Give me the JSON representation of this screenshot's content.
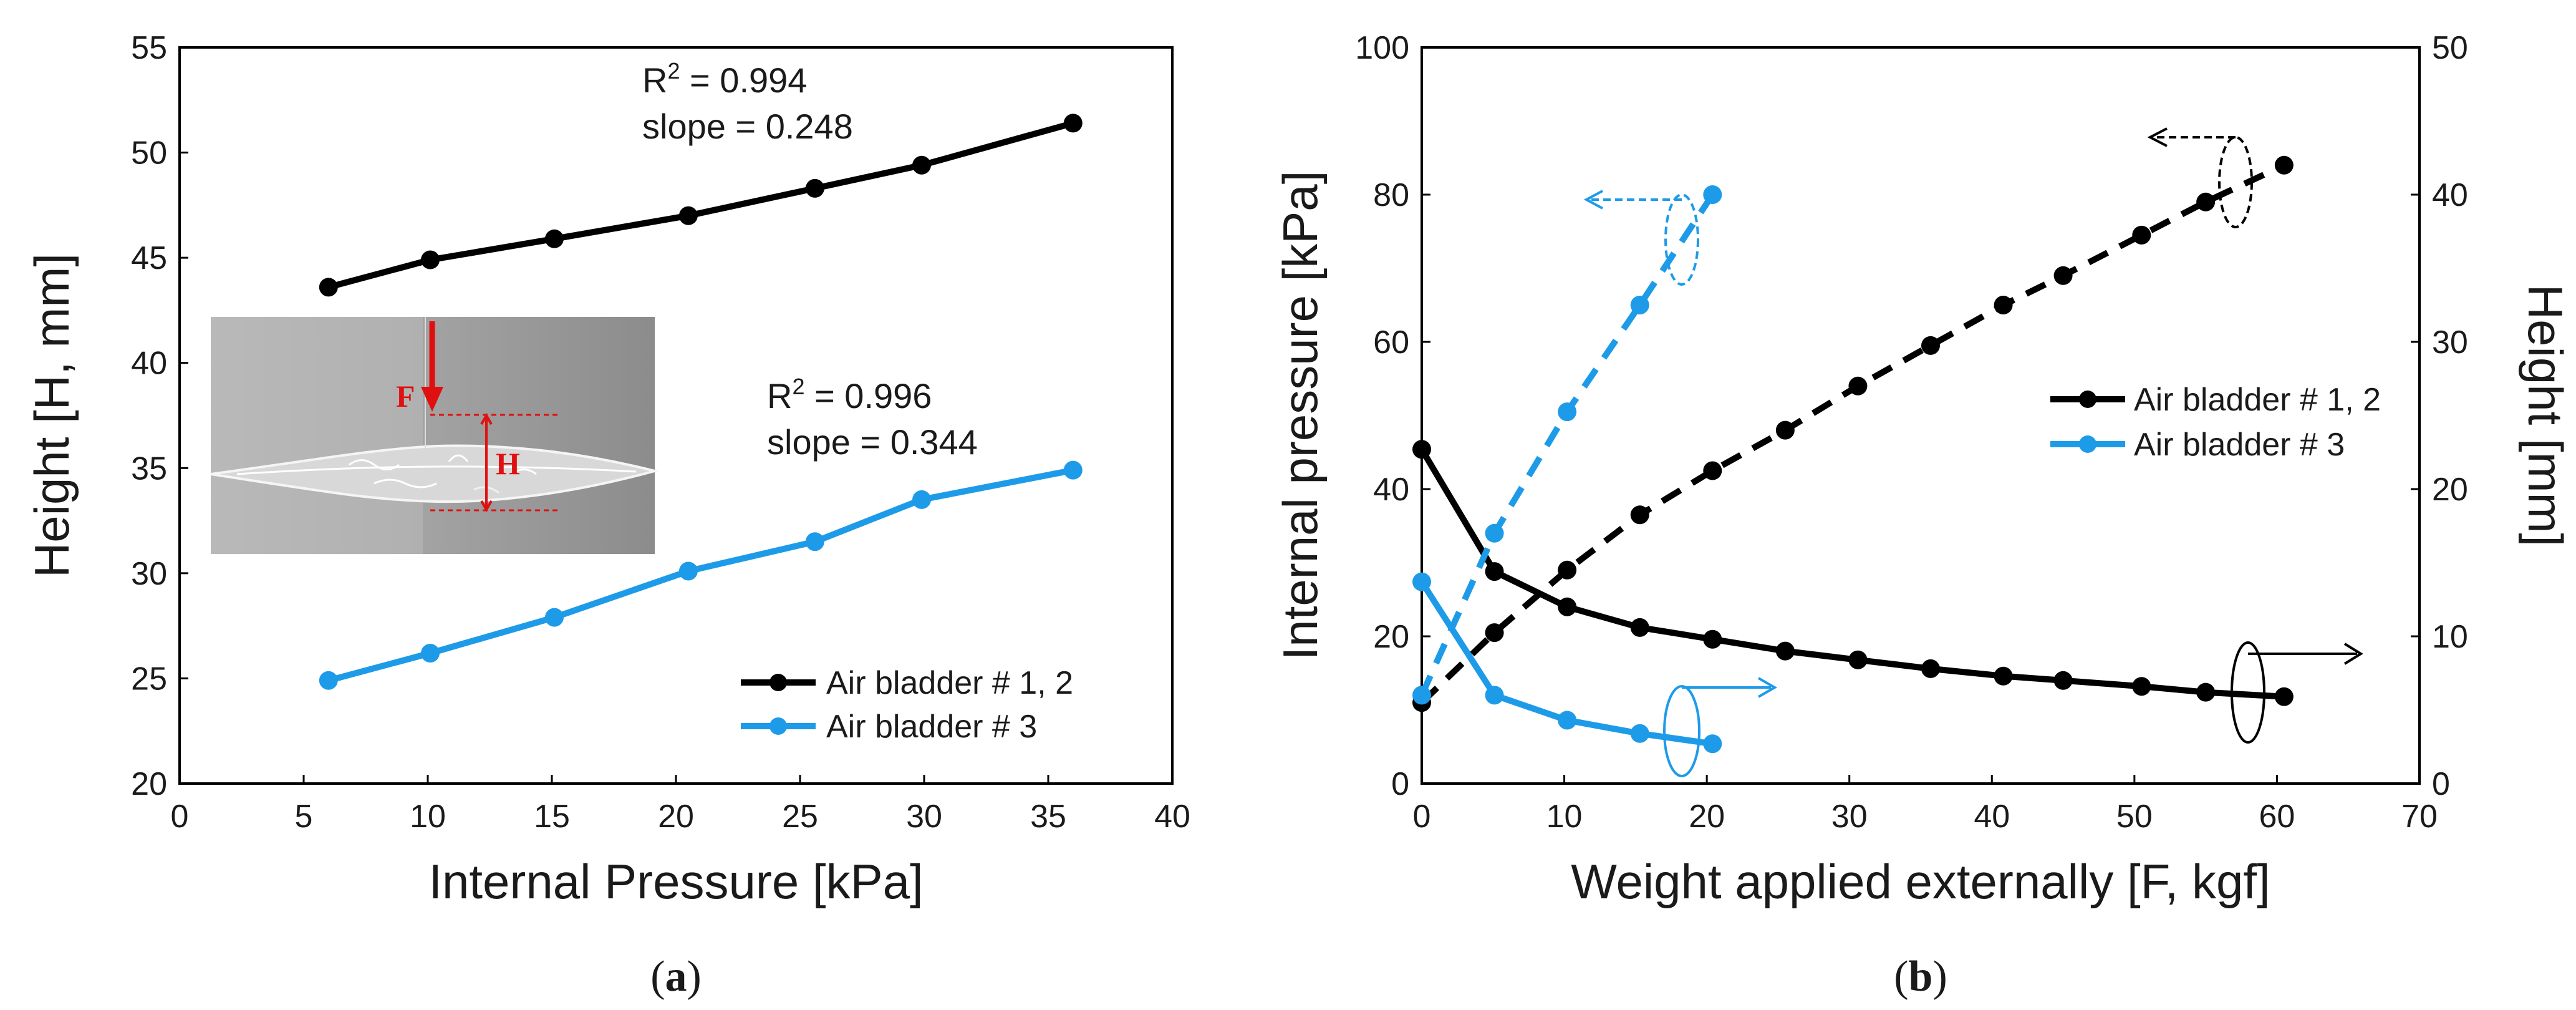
{
  "colors": {
    "black": "#000000",
    "blue": "#1e9be8",
    "red": "#e01010"
  },
  "chart_data": [
    {
      "type": "line",
      "panel_label": "a",
      "xlabel": "Internal Pressure [kPa]",
      "ylabel": "Height [H, mm]",
      "xlim": [
        0,
        40
      ],
      "ylim": [
        20,
        55
      ],
      "xticks": [
        0,
        5,
        10,
        15,
        20,
        25,
        30,
        35,
        40
      ],
      "yticks": [
        20,
        25,
        30,
        35,
        40,
        45,
        50,
        55
      ],
      "legend_position": "bottom-right",
      "series": [
        {
          "name": "Air bladder # 1, 2",
          "color": "#000000",
          "x": [
            6,
            10.1,
            15.1,
            20.5,
            25.6,
            29.9,
            36
          ],
          "y": [
            43.6,
            44.9,
            45.9,
            47.0,
            48.3,
            49.4,
            51.4
          ]
        },
        {
          "name": "Air bladder # 3",
          "color": "#1e9be8",
          "x": [
            6,
            10.1,
            15.1,
            20.5,
            25.6,
            29.9,
            36
          ],
          "y": [
            24.9,
            26.2,
            27.9,
            30.1,
            31.5,
            33.5,
            34.9
          ]
        }
      ],
      "annotations": [
        {
          "r2_prefix": "R",
          "r2_exp": "2",
          "r2_value": " = 0.994",
          "slope": "slope = 0.248"
        },
        {
          "r2_prefix": "R",
          "r2_exp": "2",
          "r2_value": " = 0.996",
          "slope": "slope = 0.344"
        }
      ],
      "inset_labels": {
        "force": "F",
        "height": "H"
      }
    },
    {
      "type": "line",
      "panel_label": "b",
      "xlabel": "Weight applied externally [F, kgf]",
      "ylabel": "Internal pressure [kPa]",
      "y2label": "Height [mm]",
      "xlim": [
        0,
        70
      ],
      "ylim": [
        0,
        100
      ],
      "y2lim": [
        0,
        50
      ],
      "xticks": [
        0,
        10,
        20,
        30,
        40,
        50,
        60,
        70
      ],
      "yticks": [
        0,
        20,
        40,
        60,
        80,
        100
      ],
      "y2ticks": [
        0,
        10,
        20,
        30,
        40,
        50
      ],
      "legend_position": "center-right",
      "series": [
        {
          "name": "Air bladder # 1, 2",
          "color": "#000000",
          "axis": "left",
          "dashed": true,
          "x": [
            0,
            5.1,
            10.2,
            15.3,
            20.4,
            25.5,
            30.6,
            35.7,
            40.8,
            45,
            50.5,
            55,
            60.5
          ],
          "y": [
            11,
            20.5,
            29,
            36.5,
            42.5,
            48,
            54,
            59.5,
            65,
            69,
            74.5,
            79,
            84
          ]
        },
        {
          "name": "Air bladder # 1, 2",
          "color": "#000000",
          "axis": "right",
          "dashed": false,
          "x": [
            0,
            5.1,
            10.2,
            15.3,
            20.4,
            25.5,
            30.6,
            35.7,
            40.8,
            45,
            50.5,
            55,
            60.5
          ],
          "y": [
            22.7,
            14.4,
            12.0,
            10.6,
            9.8,
            9.0,
            8.4,
            7.8,
            7.3,
            7.0,
            6.6,
            6.2,
            5.9
          ]
        },
        {
          "name": "Air bladder # 3",
          "color": "#1e9be8",
          "axis": "left",
          "dashed": true,
          "x": [
            0,
            5.1,
            10.2,
            15.3,
            20.4
          ],
          "y": [
            12,
            34,
            50.5,
            65,
            80
          ]
        },
        {
          "name": "Air bladder # 3",
          "color": "#1e9be8",
          "axis": "right",
          "dashed": false,
          "x": [
            0,
            5.1,
            10.2,
            15.3,
            20.4
          ],
          "y": [
            13.7,
            6.0,
            4.3,
            3.4,
            2.7
          ]
        }
      ]
    }
  ]
}
